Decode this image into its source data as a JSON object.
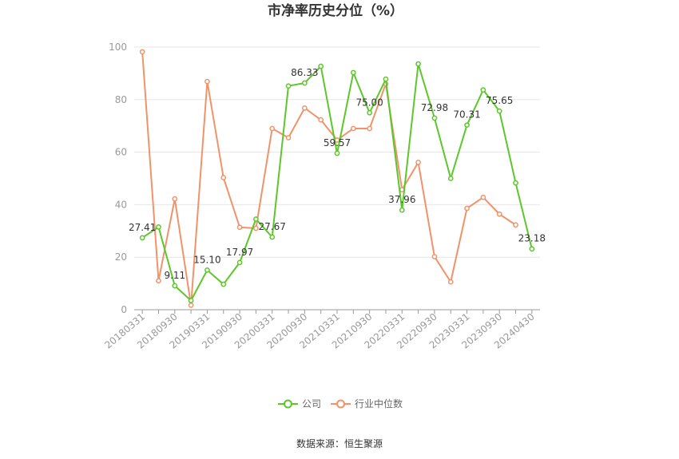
{
  "chart_data": {
    "type": "line",
    "title": "市净率历史分位（%）",
    "source": "数据来源：恒生聚源",
    "ylim": [
      0,
      100
    ],
    "yticks": [
      "0",
      "20",
      "40",
      "60",
      "80",
      "100"
    ],
    "xtick_labels": [
      "20180331",
      "20180930",
      "20190331",
      "20190930",
      "20200331",
      "20200930",
      "20210331",
      "20210930",
      "20220331",
      "20220930",
      "20230331",
      "20230930",
      "20240430"
    ],
    "x": [
      "20180331",
      "20180630",
      "20180930",
      "20181231",
      "20190331",
      "20190630",
      "20190930",
      "20191231",
      "20200331",
      "20200630",
      "20200930",
      "20201231",
      "20210331",
      "20210630",
      "20210930",
      "20211231",
      "20220331",
      "20220630",
      "20220930",
      "20221231",
      "20230331",
      "20230630",
      "20230930",
      "20231231",
      "20240430"
    ],
    "grid": true,
    "legend_position": "bottom",
    "series": [
      {
        "name": "公司",
        "color": "#5cc72a",
        "values": [
          27.41,
          31.5,
          9.11,
          3.5,
          15.1,
          9.7,
          17.97,
          34.5,
          27.67,
          85.2,
          86.33,
          92.7,
          59.57,
          90.3,
          75.0,
          87.8,
          37.96,
          93.6,
          72.98,
          50.0,
          70.31,
          83.7,
          75.65,
          48.3,
          23.18
        ],
        "labels": [
          "27.41",
          "",
          "9.11",
          "",
          "15.10",
          "",
          "17.97",
          "",
          "27.67",
          "",
          "86.33",
          "",
          "59.57",
          "",
          "75.00",
          "",
          "37.96",
          "",
          "72.98",
          "",
          "70.31",
          "",
          "75.65",
          "",
          "23.18"
        ]
      },
      {
        "name": "行业中位数",
        "color": "#f0936a",
        "values": [
          98.2,
          11.0,
          42.2,
          1.7,
          86.9,
          50.3,
          31.4,
          31.0,
          69.0,
          65.5,
          76.8,
          72.3,
          64.6,
          69.0,
          69.0,
          86.0,
          45.7,
          56.1,
          20.2,
          10.6,
          38.6,
          42.8,
          36.4,
          32.3,
          null
        ]
      }
    ]
  }
}
